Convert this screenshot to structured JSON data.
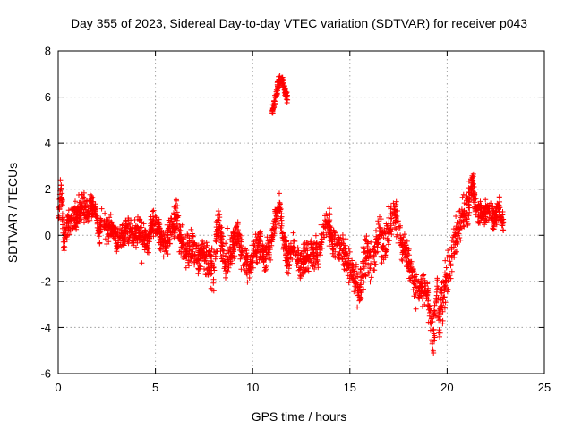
{
  "chart_data": {
    "type": "scatter",
    "title": "Day 355 of 2023, Sidereal Day-to-day VTEC variation (SDTVAR) for receiver p043",
    "xlabel": "GPS time / hours",
    "ylabel": "SDTVAR / TECUs",
    "xlim": [
      0,
      25
    ],
    "ylim": [
      -6,
      8
    ],
    "xticks": [
      0,
      5,
      10,
      15,
      20,
      25
    ],
    "yticks": [
      -6,
      -4,
      -2,
      0,
      2,
      4,
      6,
      8
    ],
    "grid": true,
    "marker": "+",
    "color": "#ff0000",
    "series": [
      {
        "name": "SDTVAR",
        "trace": [
          [
            0.0,
            0.2
          ],
          [
            0.1,
            1.9
          ],
          [
            0.15,
            2.2
          ],
          [
            0.2,
            1.5
          ],
          [
            0.25,
            0.1
          ],
          [
            0.3,
            -0.3
          ],
          [
            0.4,
            0.3
          ],
          [
            0.6,
            0.6
          ],
          [
            0.9,
            0.8
          ],
          [
            1.2,
            1.2
          ],
          [
            1.5,
            1.0
          ],
          [
            1.8,
            1.4
          ],
          [
            2.0,
            0.6
          ],
          [
            2.1,
            0.1
          ],
          [
            2.3,
            0.9
          ],
          [
            2.5,
            0.2
          ],
          [
            2.7,
            0.4
          ],
          [
            3.0,
            -0.2
          ],
          [
            3.3,
            0.0
          ],
          [
            3.6,
            0.3
          ],
          [
            3.9,
            -0.1
          ],
          [
            4.2,
            0.2
          ],
          [
            4.6,
            -0.3
          ],
          [
            4.9,
            0.5
          ],
          [
            5.2,
            0.2
          ],
          [
            5.5,
            -0.5
          ],
          [
            5.8,
            0.3
          ],
          [
            6.1,
            0.8
          ],
          [
            6.3,
            -0.2
          ],
          [
            6.6,
            -0.8
          ],
          [
            6.9,
            -0.5
          ],
          [
            7.2,
            -1.0
          ],
          [
            7.6,
            -0.8
          ],
          [
            8.0,
            -1.5
          ],
          [
            8.2,
            0.5
          ],
          [
            8.4,
            -0.2
          ],
          [
            8.6,
            -1.2
          ],
          [
            8.9,
            -0.6
          ],
          [
            9.2,
            0.1
          ],
          [
            9.5,
            -0.9
          ],
          [
            9.8,
            -1.4
          ],
          [
            10.1,
            -0.7
          ],
          [
            10.4,
            -0.3
          ],
          [
            10.6,
            -1.1
          ],
          [
            10.8,
            -0.5
          ],
          [
            11.0,
            -0.2
          ],
          [
            11.2,
            0.8
          ],
          [
            11.4,
            1.2
          ],
          [
            11.6,
            -0.3
          ],
          [
            11.8,
            -1.1
          ],
          [
            12.1,
            -0.4
          ],
          [
            12.4,
            -1.3
          ],
          [
            12.8,
            -0.9
          ],
          [
            13.1,
            -0.6
          ],
          [
            13.4,
            -1.0
          ],
          [
            13.6,
            0.1
          ],
          [
            13.8,
            0.8
          ],
          [
            14.0,
            0.2
          ],
          [
            14.3,
            -0.4
          ],
          [
            14.6,
            -0.8
          ],
          [
            14.9,
            -1.1
          ],
          [
            15.1,
            -1.6
          ],
          [
            15.3,
            -1.9
          ],
          [
            15.5,
            -2.4
          ],
          [
            15.7,
            -1.2
          ],
          [
            15.9,
            -0.8
          ],
          [
            16.1,
            -1.5
          ],
          [
            16.3,
            -0.6
          ],
          [
            16.5,
            -0.2
          ],
          [
            16.8,
            -0.4
          ],
          [
            17.0,
            0.1
          ],
          [
            17.3,
            0.8
          ],
          [
            17.5,
            0.3
          ],
          [
            17.7,
            -0.3
          ],
          [
            17.9,
            -0.8
          ],
          [
            18.1,
            -1.4
          ],
          [
            18.3,
            -2.1
          ],
          [
            18.5,
            -2.3
          ],
          [
            18.8,
            -2.3
          ],
          [
            19.0,
            -2.6
          ],
          [
            19.1,
            -3.5
          ],
          [
            19.3,
            -4.2
          ],
          [
            19.4,
            -3.2
          ],
          [
            19.5,
            -2.5
          ],
          [
            19.6,
            -3.8
          ],
          [
            19.7,
            -2.6
          ],
          [
            19.8,
            -3.2
          ],
          [
            19.9,
            -2.4
          ],
          [
            20.0,
            -1.6
          ],
          [
            20.2,
            -0.9
          ],
          [
            20.4,
            -0.2
          ],
          [
            20.6,
            0.3
          ],
          [
            20.8,
            0.9
          ],
          [
            21.0,
            1.2
          ],
          [
            21.2,
            1.8
          ],
          [
            21.3,
            2.3
          ],
          [
            21.5,
            1.2
          ],
          [
            21.8,
            0.8
          ],
          [
            22.1,
            1.1
          ],
          [
            22.4,
            0.7
          ],
          [
            22.7,
            1.2
          ],
          [
            22.9,
            0.4
          ]
        ],
        "spread": [
          [
            0,
            0.7
          ],
          [
            2,
            0.6
          ],
          [
            5,
            0.7
          ],
          [
            8,
            0.9
          ],
          [
            10,
            0.7
          ],
          [
            12,
            0.7
          ],
          [
            14,
            0.8
          ],
          [
            15,
            1.0
          ],
          [
            17,
            1.0
          ],
          [
            18.5,
            0.6
          ],
          [
            19.5,
            1.2
          ],
          [
            20.5,
            1.0
          ],
          [
            22,
            0.6
          ],
          [
            23,
            0.6
          ]
        ],
        "isolated": [
          [
            4.3,
            -1.2
          ],
          [
            4.4,
            0.5
          ],
          [
            8.7,
            0.3
          ],
          [
            9.1,
            -0.2
          ],
          [
            19.9,
            -1.1
          ],
          [
            18.4,
            -3.2
          ]
        ],
        "excursion": {
          "trace": [
            [
              11.0,
              5.4
            ],
            [
              11.1,
              5.7
            ],
            [
              11.2,
              6.1
            ],
            [
              11.3,
              6.5
            ],
            [
              11.4,
              6.7
            ],
            [
              11.5,
              6.8
            ],
            [
              11.6,
              6.5
            ],
            [
              11.7,
              6.2
            ],
            [
              11.8,
              5.9
            ]
          ],
          "spread": 0.3
        }
      }
    ]
  }
}
